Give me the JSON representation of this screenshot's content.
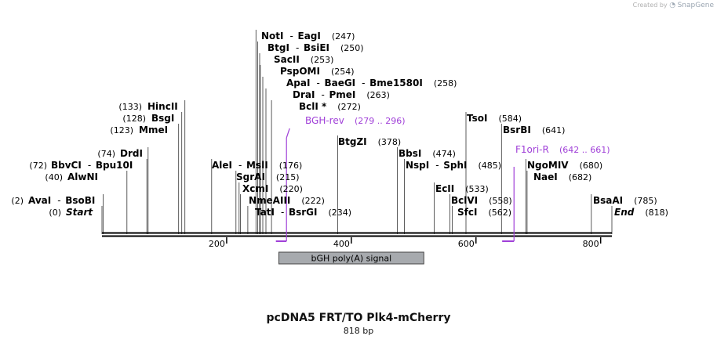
{
  "credit": {
    "prefix": "Created by",
    "brand": "SnapGene"
  },
  "map": {
    "title": "pcDNA5 FRT/TO Plk4-mCherry",
    "length_label": "818 bp",
    "length": 818,
    "ticks": [
      {
        "pos": 200,
        "label": "200"
      },
      {
        "pos": 400,
        "label": "400"
      },
      {
        "pos": 600,
        "label": "600"
      },
      {
        "pos": 800,
        "label": "800"
      }
    ],
    "features": [
      {
        "name": "bGH poly(A) signal",
        "start": 285,
        "end": 510,
        "color": "#a7aaae"
      }
    ],
    "primers": [
      {
        "name": "BGH-rev",
        "range": "(279 .. 296)",
        "start": 279,
        "end": 296,
        "color": "#a040d8",
        "direction": "reverse"
      },
      {
        "name": "F1ori-R",
        "range": "(642 .. 661)",
        "start": 642,
        "end": 661,
        "color": "#a040d8",
        "direction": "reverse"
      }
    ],
    "sites": [
      {
        "labels": [
          "Start"
        ],
        "pos_label": "(0)",
        "pos": 0,
        "italic": true,
        "side": "left"
      },
      {
        "labels": [
          "AvaI",
          "BsoBI"
        ],
        "pos_label": "(2)",
        "pos": 2,
        "side": "left"
      },
      {
        "labels": [
          "AlwNI"
        ],
        "pos_label": "(40)",
        "pos": 40,
        "side": "left"
      },
      {
        "labels": [
          "BbvCI",
          "Bpu10I"
        ],
        "pos_label": "(72)",
        "pos": 72,
        "side": "left"
      },
      {
        "labels": [
          "DrdI"
        ],
        "pos_label": "(74)",
        "pos": 74,
        "side": "left"
      },
      {
        "labels": [
          "MmeI"
        ],
        "pos_label": "(123)",
        "pos": 123,
        "side": "left"
      },
      {
        "labels": [
          "BsgI"
        ],
        "pos_label": "(128)",
        "pos": 128,
        "side": "left"
      },
      {
        "labels": [
          "HincII"
        ],
        "pos_label": "(133)",
        "pos": 133,
        "side": "left"
      },
      {
        "labels": [
          "AleI",
          "MslI"
        ],
        "pos_label": "(176)",
        "pos": 176,
        "side": "right"
      },
      {
        "labels": [
          "SgrAI"
        ],
        "pos_label": "(215)",
        "pos": 215,
        "side": "right"
      },
      {
        "labels": [
          "XcmI"
        ],
        "pos_label": "(220)",
        "pos": 220,
        "side": "right"
      },
      {
        "labels": [
          "NmeAIII"
        ],
        "pos_label": "(222)",
        "pos": 222,
        "side": "right"
      },
      {
        "labels": [
          "TatI",
          "BsrGI"
        ],
        "pos_label": "(234)",
        "pos": 234,
        "side": "right"
      },
      {
        "labels": [
          "NotI",
          "EagI"
        ],
        "pos_label": "(247)",
        "pos": 247,
        "side": "right"
      },
      {
        "labels": [
          "BtgI",
          "BsiEI"
        ],
        "pos_label": "(250)",
        "pos": 250,
        "side": "right"
      },
      {
        "labels": [
          "SacII"
        ],
        "pos_label": "(253)",
        "pos": 253,
        "side": "right"
      },
      {
        "labels": [
          "PspOMI"
        ],
        "pos_label": "(254)",
        "pos": 254,
        "side": "right"
      },
      {
        "labels": [
          "ApaI",
          "BaeGI",
          "Bme1580I"
        ],
        "pos_label": "(258)",
        "pos": 258,
        "side": "right"
      },
      {
        "labels": [
          "DraI",
          "PmeI"
        ],
        "pos_label": "(263)",
        "pos": 263,
        "side": "right"
      },
      {
        "labels": [
          "BclI *"
        ],
        "pos_label": "(272)",
        "pos": 272,
        "side": "right"
      },
      {
        "labels": [
          "BtgZI"
        ],
        "pos_label": "(378)",
        "pos": 378,
        "side": "right"
      },
      {
        "labels": [
          "BbsI"
        ],
        "pos_label": "(474)",
        "pos": 474,
        "side": "right"
      },
      {
        "labels": [
          "NspI",
          "SphI"
        ],
        "pos_label": "(485)",
        "pos": 485,
        "side": "right"
      },
      {
        "labels": [
          "EcII"
        ],
        "pos_label": "(533)",
        "pos": 533,
        "side": "right"
      },
      {
        "labels": [
          "BclVI"
        ],
        "pos_label": "(558)",
        "pos": 558,
        "side": "right"
      },
      {
        "labels": [
          "SfcI"
        ],
        "pos_label": "(562)",
        "pos": 562,
        "side": "right"
      },
      {
        "labels": [
          "TsoI"
        ],
        "pos_label": "(584)",
        "pos": 584,
        "side": "right"
      },
      {
        "labels": [
          "BsrBI"
        ],
        "pos_label": "(641)",
        "pos": 641,
        "side": "right"
      },
      {
        "labels": [
          "NgoMIV"
        ],
        "pos_label": "(680)",
        "pos": 680,
        "side": "right"
      },
      {
        "labels": [
          "NaeI"
        ],
        "pos_label": "(682)",
        "pos": 682,
        "side": "right"
      },
      {
        "labels": [
          "BsaAI"
        ],
        "pos_label": "(785)",
        "pos": 785,
        "side": "right"
      },
      {
        "labels": [
          "End"
        ],
        "pos_label": "(818)",
        "pos": 818,
        "italic": true,
        "side": "right"
      }
    ]
  }
}
